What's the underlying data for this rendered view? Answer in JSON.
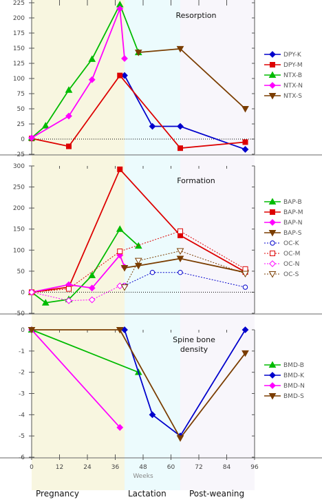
{
  "phases": [
    {
      "label": "Pregnancy",
      "x0": 0,
      "x1": 40,
      "color": "#f8f6e0"
    },
    {
      "label": "Lactation",
      "x0": 40,
      "x1": 64,
      "color": "#ecfbfd"
    },
    {
      "label": "Post-weaning",
      "x0": 64,
      "x1": 96,
      "color": "#f8f6fb"
    }
  ],
  "x_axis": {
    "label": "Weeks",
    "ticks": [
      0,
      12,
      24,
      36,
      48,
      60,
      72,
      84,
      96
    ],
    "range": [
      0,
      96
    ]
  },
  "chart_data": [
    {
      "type": "line",
      "title": "Resorption",
      "ylim": [
        -25,
        225
      ],
      "yticks": [
        -25,
        0,
        25,
        50,
        75,
        100,
        125,
        150,
        175,
        200,
        225
      ],
      "zero_line": true,
      "series": [
        {
          "name": "DPY-K",
          "color": "#0000cc",
          "marker": "diamond",
          "filled": true,
          "dash": false,
          "x": [
            40,
            52,
            64,
            92
          ],
          "y": [
            105,
            21,
            21,
            -17
          ]
        },
        {
          "name": "DPY-M",
          "color": "#dd0000",
          "marker": "square",
          "filled": true,
          "dash": false,
          "x": [
            0,
            16,
            38,
            64,
            92
          ],
          "y": [
            1,
            -12,
            105,
            -15,
            -5
          ]
        },
        {
          "name": "NTX-B",
          "color": "#00bb00",
          "marker": "triangle",
          "filled": true,
          "dash": false,
          "x": [
            0,
            6,
            16,
            26,
            38,
            46
          ],
          "y": [
            2,
            22,
            81,
            132,
            222,
            143
          ]
        },
        {
          "name": "NTX-N",
          "color": "#ff00ff",
          "marker": "diamond",
          "filled": true,
          "dash": false,
          "x": [
            0,
            16,
            26,
            38,
            40
          ],
          "y": [
            2,
            38,
            98,
            215,
            133
          ]
        },
        {
          "name": "NTX-S",
          "color": "#7a3d00",
          "marker": "triangle-down",
          "filled": true,
          "dash": false,
          "x": [
            46,
            64,
            92
          ],
          "y": [
            143,
            149,
            50
          ]
        }
      ]
    },
    {
      "type": "line",
      "title": "Formation",
      "ylim": [
        -50,
        300
      ],
      "yticks": [
        -50,
        0,
        50,
        100,
        150,
        200,
        250,
        300
      ],
      "zero_line": true,
      "series": [
        {
          "name": "BAP-B",
          "color": "#00bb00",
          "marker": "triangle",
          "filled": true,
          "dash": false,
          "x": [
            0,
            6,
            16,
            26,
            38,
            46
          ],
          "y": [
            0,
            -25,
            -17,
            40,
            150,
            110
          ]
        },
        {
          "name": "BAP-M",
          "color": "#dd0000",
          "marker": "square",
          "filled": true,
          "dash": false,
          "x": [
            0,
            16,
            38,
            64,
            92
          ],
          "y": [
            0,
            12,
            292,
            135,
            48
          ]
        },
        {
          "name": "BAP-N",
          "color": "#ff00ff",
          "marker": "diamond",
          "filled": true,
          "dash": false,
          "x": [
            0,
            16,
            26,
            38,
            40
          ],
          "y": [
            0,
            18,
            10,
            88,
            60
          ]
        },
        {
          "name": "BAP-S",
          "color": "#7a3d00",
          "marker": "triangle-down",
          "filled": true,
          "dash": false,
          "x": [
            40,
            46,
            64,
            92
          ],
          "y": [
            58,
            63,
            80,
            47
          ]
        },
        {
          "name": "OC-K",
          "color": "#0000cc",
          "marker": "circle",
          "filled": false,
          "dash": true,
          "x": [
            40,
            52,
            64,
            92
          ],
          "y": [
            16,
            47,
            47,
            12
          ]
        },
        {
          "name": "OC-M",
          "color": "#dd0000",
          "marker": "square",
          "filled": false,
          "dash": true,
          "x": [
            0,
            16,
            38,
            64,
            92
          ],
          "y": [
            0,
            8,
            97,
            145,
            55
          ]
        },
        {
          "name": "OC-N",
          "color": "#ff00ff",
          "marker": "diamond",
          "filled": false,
          "dash": true,
          "x": [
            0,
            16,
            26,
            38,
            40
          ],
          "y": [
            0,
            -20,
            -18,
            15,
            15
          ]
        },
        {
          "name": "OC-S",
          "color": "#7a3d00",
          "marker": "triangle-down",
          "filled": false,
          "dash": true,
          "x": [
            40,
            46,
            64,
            92
          ],
          "y": [
            12,
            75,
            98,
            44
          ]
        }
      ]
    },
    {
      "type": "line",
      "title": "Spine bone density",
      "ylim": [
        -6,
        0
      ],
      "yticks": [
        -6,
        -5,
        -4,
        -3,
        -2,
        -1,
        0
      ],
      "zero_line": false,
      "series": [
        {
          "name": "BMD-B",
          "color": "#00bb00",
          "marker": "triangle",
          "filled": true,
          "dash": false,
          "x": [
            0,
            46
          ],
          "y": [
            0,
            -2.0
          ]
        },
        {
          "name": "BMD-K",
          "color": "#0000cc",
          "marker": "diamond",
          "filled": true,
          "dash": false,
          "x": [
            40,
            52,
            64,
            92
          ],
          "y": [
            0,
            -4.0,
            -5.0,
            0
          ]
        },
        {
          "name": "BMD-N",
          "color": "#ff00ff",
          "marker": "diamond",
          "filled": true,
          "dash": false,
          "x": [
            0,
            38
          ],
          "y": [
            0,
            -4.6
          ]
        },
        {
          "name": "BMD-S",
          "color": "#7a3d00",
          "marker": "triangle-down",
          "filled": true,
          "dash": false,
          "x": [
            0,
            38,
            64,
            92
          ],
          "y": [
            0,
            0,
            -5.1,
            -1.1
          ]
        }
      ]
    }
  ]
}
